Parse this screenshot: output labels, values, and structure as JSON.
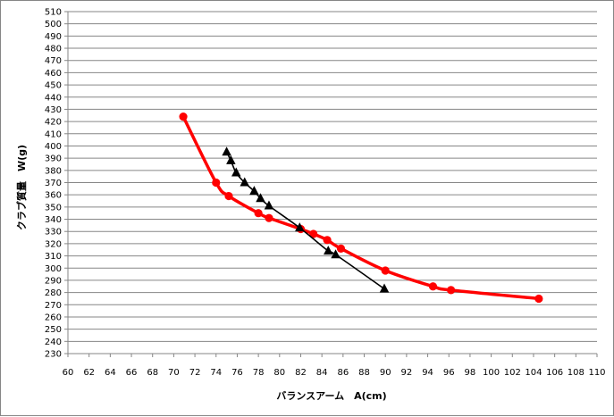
{
  "chart_data": {
    "type": "line",
    "title": "",
    "xlabel": "バランスアーム　A(cm)",
    "ylabel": "クラブ質量　W(g)",
    "xlim": [
      60,
      110
    ],
    "ylim": [
      230,
      510
    ],
    "x_ticks": [
      60,
      62,
      64,
      66,
      68,
      70,
      72,
      74,
      76,
      78,
      80,
      82,
      84,
      86,
      88,
      90,
      92,
      94,
      96,
      98,
      100,
      102,
      104,
      106,
      108,
      110
    ],
    "y_ticks": [
      230,
      240,
      250,
      260,
      270,
      280,
      290,
      300,
      310,
      320,
      330,
      340,
      350,
      360,
      370,
      380,
      390,
      400,
      410,
      420,
      430,
      440,
      450,
      460,
      470,
      480,
      490,
      500,
      510
    ],
    "grid": "horizontal",
    "legend": "none",
    "series": [
      {
        "color": "#ff0000",
        "marker": "circle",
        "smooth": true,
        "points": [
          [
            70.9,
            424
          ],
          [
            74.0,
            370
          ],
          [
            75.2,
            359
          ],
          [
            78.0,
            345
          ],
          [
            79.0,
            341
          ],
          [
            82.0,
            332
          ],
          [
            83.2,
            328
          ],
          [
            84.5,
            323
          ],
          [
            85.8,
            316
          ],
          [
            90.0,
            298
          ],
          [
            94.5,
            285
          ],
          [
            96.2,
            282
          ],
          [
            104.5,
            275
          ]
        ]
      },
      {
        "color": "#000000",
        "marker": "triangle",
        "smooth": true,
        "points": [
          [
            75.0,
            395
          ],
          [
            75.4,
            388
          ],
          [
            75.9,
            378
          ],
          [
            76.7,
            370
          ],
          [
            77.6,
            363
          ],
          [
            78.2,
            357
          ],
          [
            79.0,
            351
          ],
          [
            81.9,
            333
          ],
          [
            84.6,
            314
          ],
          [
            85.3,
            311
          ],
          [
            89.9,
            283
          ]
        ]
      }
    ]
  }
}
